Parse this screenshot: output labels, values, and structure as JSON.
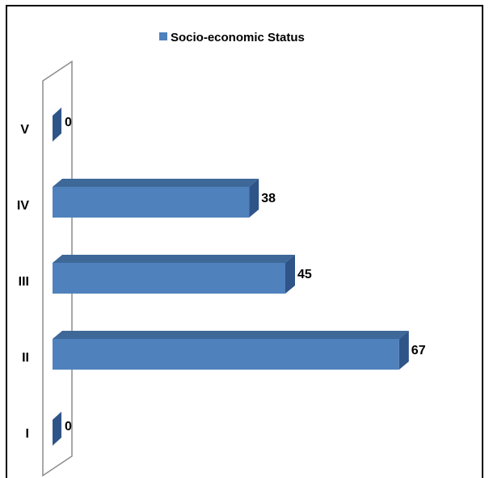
{
  "chart_data": {
    "type": "bar",
    "orientation": "horizontal",
    "three_d": true,
    "categories": [
      "I",
      "II",
      "III",
      "IV",
      "V"
    ],
    "series": [
      {
        "name": "Socio-economic Status",
        "values": [
          0,
          67,
          45,
          38,
          0
        ]
      }
    ],
    "xlim": [
      0,
      70
    ],
    "grid": false,
    "legend_position": "top",
    "data_labels": true,
    "colors": {
      "bar_front": "#4F81BD",
      "bar_top": "#3D6898",
      "bar_side": "#2F5488",
      "wall_stroke": "#8C8C8C"
    }
  }
}
